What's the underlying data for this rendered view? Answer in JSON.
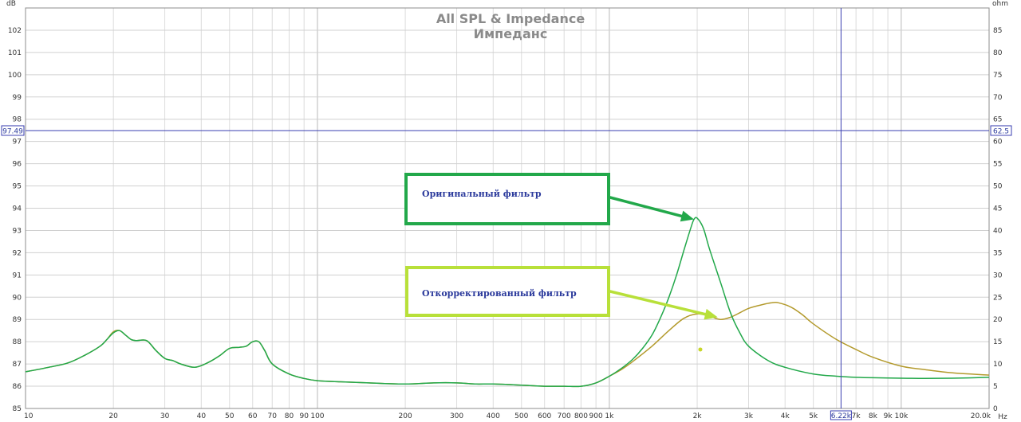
{
  "chart_data": {
    "type": "line",
    "title": "All SPL & Impedance",
    "subtitle": "Импеданс",
    "xlabel_unit": "Hz",
    "ylabel_left_unit": "dB",
    "ylabel_right_unit": "ohm",
    "x_scale": "log",
    "xlim": [
      10,
      20000
    ],
    "ylim_left": [
      85,
      103
    ],
    "ylim_right": [
      0,
      90
    ],
    "grid": true,
    "x_ticks": [
      {
        "value": 10,
        "label": "10"
      },
      {
        "value": 20,
        "label": "20"
      },
      {
        "value": 30,
        "label": "30"
      },
      {
        "value": 40,
        "label": "40"
      },
      {
        "value": 50,
        "label": "50"
      },
      {
        "value": 60,
        "label": "60"
      },
      {
        "value": 70,
        "label": "70"
      },
      {
        "value": 80,
        "label": "80"
      },
      {
        "value": 90,
        "label": "90"
      },
      {
        "value": 100,
        "label": "100"
      },
      {
        "value": 200,
        "label": "200"
      },
      {
        "value": 300,
        "label": "300"
      },
      {
        "value": 400,
        "label": "400"
      },
      {
        "value": 500,
        "label": "500"
      },
      {
        "value": 600,
        "label": "600"
      },
      {
        "value": 700,
        "label": "700"
      },
      {
        "value": 800,
        "label": "800"
      },
      {
        "value": 900,
        "label": "900"
      },
      {
        "value": 1000,
        "label": "1k"
      },
      {
        "value": 2000,
        "label": "2k"
      },
      {
        "value": 3000,
        "label": "3k"
      },
      {
        "value": 4000,
        "label": "4k"
      },
      {
        "value": 5000,
        "label": "5k"
      },
      {
        "value": 7000,
        "label": "7k"
      },
      {
        "value": 8000,
        "label": "8k"
      },
      {
        "value": 9000,
        "label": "9k"
      },
      {
        "value": 10000,
        "label": "10k"
      },
      {
        "value": 20000,
        "label": "20.0k"
      }
    ],
    "y_left_ticks": [
      "85",
      "86",
      "87",
      "88",
      "89",
      "90",
      "91",
      "92",
      "93",
      "94",
      "95",
      "96",
      "97",
      "98",
      "99",
      "100",
      "101",
      "102"
    ],
    "y_right_ticks": [
      "0",
      "5",
      "10",
      "15",
      "20",
      "25",
      "30",
      "35",
      "40",
      "45",
      "50",
      "55",
      "60",
      "65",
      "70",
      "75",
      "80",
      "85"
    ],
    "cursor": {
      "x": 6220,
      "x_label": "6.22k",
      "y_left": 97.49,
      "y_left_label": "97.49",
      "y_right_label": "62.5"
    },
    "series": [
      {
        "name": "Оригинальный фильтр",
        "color": "#22a84a",
        "x": [
          10,
          12,
          14,
          16,
          18,
          19,
          20,
          21,
          22,
          23,
          24,
          26,
          28,
          30,
          32,
          34,
          38,
          42,
          46,
          50,
          54,
          57,
          60,
          63,
          66,
          70,
          80,
          90,
          100,
          120,
          150,
          200,
          250,
          300,
          350,
          400,
          500,
          600,
          700,
          800,
          900,
          1000,
          1100,
          1200,
          1300,
          1400,
          1500,
          1600,
          1700,
          1800,
          1900,
          1950,
          2000,
          2100,
          2200,
          2400,
          2600,
          2800,
          3000,
          3500,
          4000,
          5000,
          6000,
          7000,
          8000,
          10000,
          12000,
          15000,
          20000
        ],
        "y": [
          86.65,
          86.85,
          87.05,
          87.4,
          87.8,
          88.1,
          88.4,
          88.5,
          88.3,
          88.1,
          88.05,
          88.05,
          87.6,
          87.25,
          87.15,
          87.0,
          86.85,
          87.05,
          87.35,
          87.7,
          87.75,
          87.8,
          88.0,
          88.0,
          87.6,
          87.0,
          86.55,
          86.35,
          86.25,
          86.2,
          86.15,
          86.1,
          86.15,
          86.15,
          86.1,
          86.1,
          86.05,
          86.0,
          86.0,
          86.0,
          86.15,
          86.45,
          86.8,
          87.2,
          87.7,
          88.3,
          89.1,
          90.0,
          91.0,
          92.1,
          93.1,
          93.5,
          93.55,
          93.1,
          92.2,
          90.7,
          89.3,
          88.4,
          87.8,
          87.15,
          86.85,
          86.55,
          86.45,
          86.4,
          86.38,
          86.36,
          86.35,
          86.36,
          86.4
        ]
      },
      {
        "name": "Откорректированный фильтр",
        "color": "#b39a2c",
        "x": [
          10,
          12,
          14,
          16,
          18,
          19,
          20,
          21,
          22,
          23,
          24,
          26,
          28,
          30,
          32,
          34,
          38,
          42,
          46,
          50,
          54,
          57,
          60,
          63,
          66,
          70,
          80,
          90,
          100,
          120,
          150,
          200,
          250,
          300,
          350,
          400,
          500,
          600,
          700,
          800,
          900,
          1000,
          1100,
          1200,
          1400,
          1600,
          1800,
          2000,
          2200,
          2400,
          2600,
          2800,
          3000,
          3300,
          3600,
          3800,
          4200,
          4600,
          5000,
          6000,
          7000,
          8000,
          10000,
          12000,
          15000,
          20000
        ],
        "y": [
          86.65,
          86.85,
          87.05,
          87.4,
          87.8,
          88.1,
          88.45,
          88.5,
          88.3,
          88.1,
          88.05,
          88.05,
          87.6,
          87.25,
          87.15,
          87.0,
          86.85,
          87.05,
          87.35,
          87.7,
          87.75,
          87.8,
          88.0,
          88.0,
          87.6,
          87.0,
          86.55,
          86.35,
          86.25,
          86.2,
          86.15,
          86.1,
          86.15,
          86.15,
          86.1,
          86.1,
          86.05,
          86.0,
          86.0,
          86.0,
          86.15,
          86.45,
          86.75,
          87.1,
          87.8,
          88.5,
          89.05,
          89.25,
          89.15,
          89.0,
          89.1,
          89.3,
          89.5,
          89.65,
          89.75,
          89.75,
          89.55,
          89.2,
          88.8,
          88.1,
          87.65,
          87.3,
          86.9,
          86.75,
          86.6,
          86.5
        ]
      }
    ],
    "annotations": [
      {
        "text": "Оригинальный фильтр",
        "color": "#22a84a",
        "target_x": 1950,
        "target_y": 93.5
      },
      {
        "text": "Откорректированный фильтр",
        "color": "#b8e03a",
        "target_x": 2350,
        "target_y": 89.1
      }
    ],
    "marker": {
      "x": 2050,
      "y": 87.65,
      "color": "#c8d62a"
    }
  }
}
